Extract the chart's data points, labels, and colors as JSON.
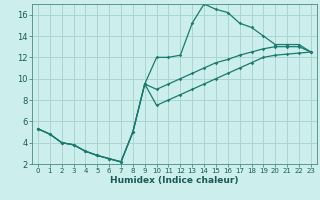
{
  "xlabel": "Humidex (Indice chaleur)",
  "bg_color": "#cceeed",
  "grid_color": "#aad4d2",
  "line_color": "#1a7a6e",
  "xlim": [
    -0.5,
    23.5
  ],
  "ylim": [
    2,
    17
  ],
  "xticks": [
    0,
    1,
    2,
    3,
    4,
    5,
    6,
    7,
    8,
    9,
    10,
    11,
    12,
    13,
    14,
    15,
    16,
    17,
    18,
    19,
    20,
    21,
    22,
    23
  ],
  "yticks": [
    2,
    4,
    6,
    8,
    10,
    12,
    14,
    16
  ],
  "line1_x": [
    0,
    1,
    2,
    3,
    4,
    5,
    6,
    7,
    8,
    9,
    10,
    11,
    12,
    13,
    14,
    15,
    16,
    17,
    18,
    19,
    20,
    21,
    22,
    23
  ],
  "line1_y": [
    5.3,
    4.8,
    4.0,
    3.8,
    3.2,
    2.8,
    2.5,
    2.2,
    5.0,
    9.5,
    12.0,
    12.0,
    12.2,
    15.2,
    17.0,
    16.5,
    16.2,
    15.2,
    14.8,
    14.0,
    13.2,
    13.2,
    13.2,
    12.5
  ],
  "line2_x": [
    0,
    1,
    2,
    3,
    4,
    5,
    6,
    7,
    8,
    9,
    10,
    11,
    12,
    13,
    14,
    15,
    16,
    17,
    18,
    19,
    20,
    21,
    22,
    23
  ],
  "line2_y": [
    5.3,
    4.8,
    4.0,
    3.8,
    3.2,
    2.8,
    2.5,
    2.2,
    5.0,
    9.5,
    9.0,
    9.5,
    10.0,
    10.5,
    11.0,
    11.5,
    11.8,
    12.2,
    12.5,
    12.8,
    13.0,
    13.0,
    13.0,
    12.5
  ],
  "line3_x": [
    0,
    1,
    2,
    3,
    4,
    5,
    6,
    7,
    8,
    9,
    10,
    11,
    12,
    13,
    14,
    15,
    16,
    17,
    18,
    19,
    20,
    21,
    22,
    23
  ],
  "line3_y": [
    5.3,
    4.8,
    4.0,
    3.8,
    3.2,
    2.8,
    2.5,
    2.2,
    5.0,
    9.5,
    7.5,
    8.0,
    8.5,
    9.0,
    9.5,
    10.0,
    10.5,
    11.0,
    11.5,
    12.0,
    12.2,
    12.3,
    12.4,
    12.5
  ]
}
